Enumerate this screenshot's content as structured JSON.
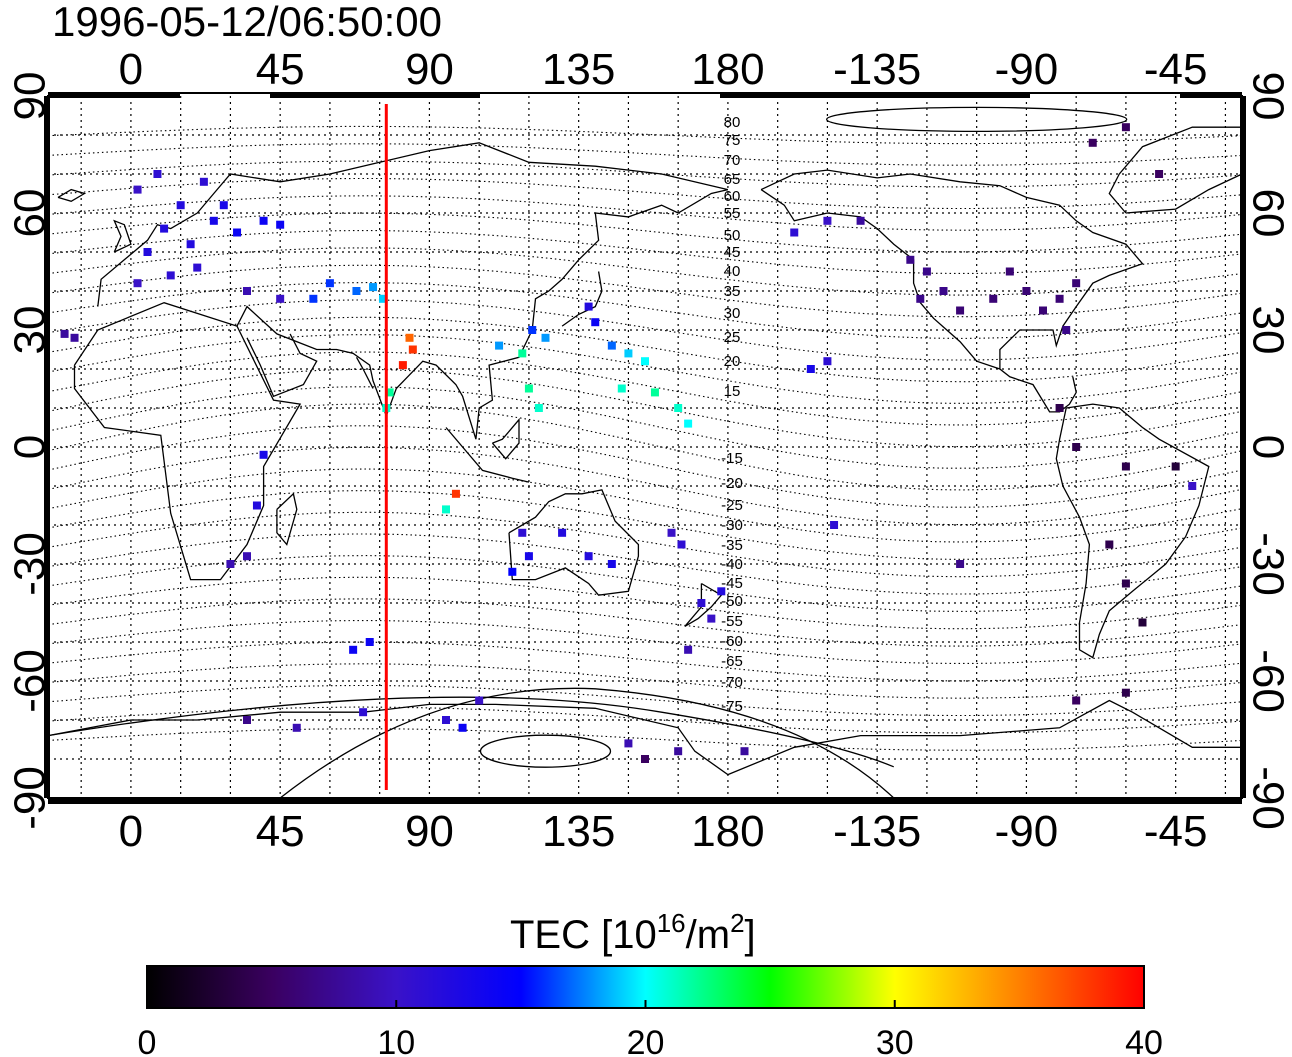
{
  "timestamp": "1996-05-12/06:50:00",
  "top_axis_ticks": [
    "0",
    "45",
    "90",
    "135",
    "180",
    "-135",
    "-90",
    "-45"
  ],
  "bottom_axis_ticks": [
    "0",
    "45",
    "90",
    "135",
    "180",
    "-135",
    "-90",
    "-45"
  ],
  "lat_ticks": [
    "90",
    "60",
    "30",
    "0",
    "-30",
    "-60",
    "-90"
  ],
  "contour_labels": [
    "80",
    "75",
    "70",
    "65",
    "60",
    "55",
    "50",
    "45",
    "40",
    "35",
    "30",
    "25",
    "20",
    "15",
    "-15",
    "-20",
    "-25",
    "-30",
    "-35",
    "-40",
    "-45",
    "-50",
    "-55",
    "-60",
    "-65",
    "-70",
    "-75"
  ],
  "marker_longitude": 77,
  "colorbar": {
    "title": "TEC  [10",
    "title_sup1": "16",
    "title_mid": "/m",
    "title_sup2": "2",
    "title_end": "]",
    "ticks": [
      "0",
      "10",
      "20",
      "30",
      "40"
    ],
    "min": 0,
    "max": 40,
    "stops": [
      "#000000",
      "#3a0060",
      "#3a12c8",
      "#0000ff",
      "#00ffff",
      "#00ff00",
      "#ffff00",
      "#ff8000",
      "#ff0000"
    ]
  },
  "colors": {
    "marker": "#ff0000",
    "frame": "#000000"
  },
  "chart_data": {
    "type": "scatter",
    "title": "1996-05-12/06:50:00",
    "xlabel": "",
    "ylabel": "",
    "xlim": [
      -25,
      335
    ],
    "ylim": [
      -90,
      90
    ],
    "value_label": "TEC [10^16/m^2]",
    "points": [
      {
        "x": 2,
        "y": 66,
        "v": 10
      },
      {
        "x": 8,
        "y": 70,
        "v": 11
      },
      {
        "x": 15,
        "y": 62,
        "v": 12
      },
      {
        "x": 22,
        "y": 68,
        "v": 11
      },
      {
        "x": 10,
        "y": 56,
        "v": 12
      },
      {
        "x": 18,
        "y": 52,
        "v": 12
      },
      {
        "x": 5,
        "y": 50,
        "v": 12
      },
      {
        "x": 25,
        "y": 58,
        "v": 13
      },
      {
        "x": 28,
        "y": 62,
        "v": 13
      },
      {
        "x": 12,
        "y": 44,
        "v": 11
      },
      {
        "x": 20,
        "y": 46,
        "v": 11
      },
      {
        "x": 2,
        "y": 42,
        "v": 10
      },
      {
        "x": 32,
        "y": 55,
        "v": 14
      },
      {
        "x": 40,
        "y": 58,
        "v": 14
      },
      {
        "x": 45,
        "y": 57,
        "v": 14
      },
      {
        "x": 35,
        "y": 40,
        "v": 9
      },
      {
        "x": 45,
        "y": 38,
        "v": 10
      },
      {
        "x": -20,
        "y": 29,
        "v": 8
      },
      {
        "x": -17,
        "y": 28,
        "v": 8
      },
      {
        "x": 60,
        "y": 42,
        "v": 16
      },
      {
        "x": 68,
        "y": 40,
        "v": 17
      },
      {
        "x": 73,
        "y": 41,
        "v": 18
      },
      {
        "x": 76,
        "y": 38,
        "v": 19
      },
      {
        "x": 55,
        "y": 38,
        "v": 16
      },
      {
        "x": 84,
        "y": 28,
        "v": 36
      },
      {
        "x": 85,
        "y": 25,
        "v": 38
      },
      {
        "x": 82,
        "y": 21,
        "v": 39
      },
      {
        "x": 78,
        "y": 14,
        "v": 22
      },
      {
        "x": 77,
        "y": 10,
        "v": 21
      },
      {
        "x": 95,
        "y": -16,
        "v": 21
      },
      {
        "x": 98,
        "y": -12,
        "v": 38
      },
      {
        "x": 111,
        "y": 26,
        "v": 18
      },
      {
        "x": 118,
        "y": 24,
        "v": 22
      },
      {
        "x": 121,
        "y": 30,
        "v": 16
      },
      {
        "x": 125,
        "y": 28,
        "v": 18
      },
      {
        "x": 120,
        "y": 15,
        "v": 22
      },
      {
        "x": 123,
        "y": 10,
        "v": 21
      },
      {
        "x": 138,
        "y": 36,
        "v": 12
      },
      {
        "x": 140,
        "y": 32,
        "v": 14
      },
      {
        "x": 145,
        "y": 26,
        "v": 17
      },
      {
        "x": 150,
        "y": 24,
        "v": 19
      },
      {
        "x": 155,
        "y": 22,
        "v": 20
      },
      {
        "x": 148,
        "y": 15,
        "v": 21
      },
      {
        "x": 158,
        "y": 14,
        "v": 22
      },
      {
        "x": 165,
        "y": 10,
        "v": 21
      },
      {
        "x": 168,
        "y": 6,
        "v": 20
      },
      {
        "x": 115,
        "y": -32,
        "v": 15
      },
      {
        "x": 120,
        "y": -28,
        "v": 13
      },
      {
        "x": 130,
        "y": -22,
        "v": 12
      },
      {
        "x": 138,
        "y": -28,
        "v": 12
      },
      {
        "x": 145,
        "y": -30,
        "v": 13
      },
      {
        "x": 118,
        "y": -22,
        "v": 11
      },
      {
        "x": 172,
        "y": -40,
        "v": 11
      },
      {
        "x": 175,
        "y": -44,
        "v": 10
      },
      {
        "x": 178,
        "y": -37,
        "v": 12
      },
      {
        "x": 168,
        "y": -52,
        "v": 9
      },
      {
        "x": 166,
        "y": -25,
        "v": 11
      },
      {
        "x": 163,
        "y": -22,
        "v": 10
      },
      {
        "x": 205,
        "y": 20,
        "v": 13
      },
      {
        "x": 210,
        "y": 22,
        "v": 11
      },
      {
        "x": 212,
        "y": -20,
        "v": 11
      },
      {
        "x": 200,
        "y": 55,
        "v": 11
      },
      {
        "x": 210,
        "y": 58,
        "v": 10
      },
      {
        "x": 220,
        "y": 58,
        "v": 8
      },
      {
        "x": 235,
        "y": 48,
        "v": 7
      },
      {
        "x": 240,
        "y": 45,
        "v": 7
      },
      {
        "x": 245,
        "y": 40,
        "v": 7
      },
      {
        "x": 238,
        "y": 38,
        "v": 7
      },
      {
        "x": 250,
        "y": 35,
        "v": 6
      },
      {
        "x": 260,
        "y": 38,
        "v": 6
      },
      {
        "x": 270,
        "y": 40,
        "v": 6
      },
      {
        "x": 275,
        "y": 35,
        "v": 6
      },
      {
        "x": 280,
        "y": 38,
        "v": 6
      },
      {
        "x": 285,
        "y": 42,
        "v": 6
      },
      {
        "x": 282,
        "y": 30,
        "v": 7
      },
      {
        "x": 265,
        "y": 45,
        "v": 6
      },
      {
        "x": 290,
        "y": 78,
        "v": 5
      },
      {
        "x": 300,
        "y": 82,
        "v": 5
      },
      {
        "x": 310,
        "y": 70,
        "v": 5
      },
      {
        "x": 280,
        "y": 10,
        "v": 4
      },
      {
        "x": 285,
        "y": 0,
        "v": 4
      },
      {
        "x": 300,
        "y": -5,
        "v": 4
      },
      {
        "x": 295,
        "y": -25,
        "v": 4
      },
      {
        "x": 300,
        "y": -35,
        "v": 4
      },
      {
        "x": 305,
        "y": -45,
        "v": 3
      },
      {
        "x": 315,
        "y": -5,
        "v": 3
      },
      {
        "x": 320,
        "y": -10,
        "v": 10
      },
      {
        "x": 250,
        "y": -30,
        "v": 7
      },
      {
        "x": 30,
        "y": -30,
        "v": 9
      },
      {
        "x": 35,
        "y": -28,
        "v": 9
      },
      {
        "x": 38,
        "y": -15,
        "v": 12
      },
      {
        "x": 40,
        "y": -2,
        "v": 13
      },
      {
        "x": 67,
        "y": -52,
        "v": 14
      },
      {
        "x": 72,
        "y": -50,
        "v": 14
      },
      {
        "x": 35,
        "y": -70,
        "v": 7
      },
      {
        "x": 50,
        "y": -72,
        "v": 9
      },
      {
        "x": 70,
        "y": -68,
        "v": 11
      },
      {
        "x": 95,
        "y": -70,
        "v": 11
      },
      {
        "x": 100,
        "y": -72,
        "v": 14
      },
      {
        "x": 105,
        "y": -65,
        "v": 10
      },
      {
        "x": 150,
        "y": -76,
        "v": 9
      },
      {
        "x": 165,
        "y": -78,
        "v": 8
      },
      {
        "x": 185,
        "y": -78,
        "v": 8
      },
      {
        "x": 155,
        "y": -80,
        "v": 5
      },
      {
        "x": 285,
        "y": -65,
        "v": 5
      },
      {
        "x": 300,
        "y": -63,
        "v": 4
      }
    ]
  }
}
